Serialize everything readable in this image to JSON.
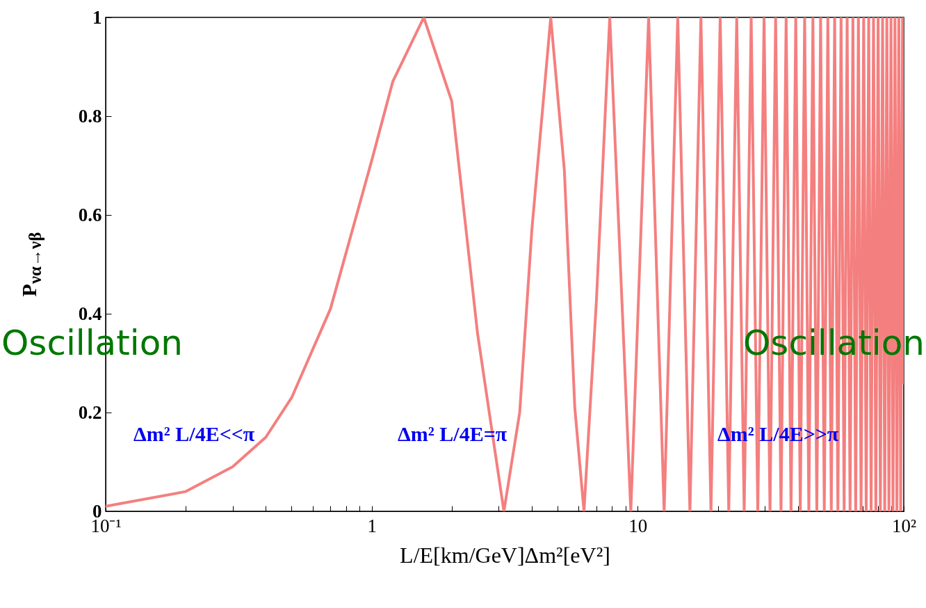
{
  "chart_data": {
    "type": "line",
    "xlabel": "L/E[km/GeV]Δm²[eV²]",
    "ylabel": "P$_{να→νβ}$",
    "log": "x",
    "grid": false,
    "marker": "none",
    "line_style": "solid",
    "xlim": [
      0.1,
      100
    ],
    "xticks": [
      {
        "value": 0.1,
        "label": "10⁻¹"
      },
      {
        "value": 0.2,
        "label": null
      },
      {
        "value": 0.3,
        "label": null
      },
      {
        "value": 0.4,
        "label": null
      },
      {
        "value": 0.5,
        "label": null
      },
      {
        "value": 0.6,
        "label": null
      },
      {
        "value": 0.7,
        "label": null
      },
      {
        "value": 0.8,
        "label": null
      },
      {
        "value": 0.9,
        "label": null
      },
      1,
      {
        "value": 2,
        "label": null
      },
      {
        "value": 3,
        "label": null
      },
      {
        "value": 4,
        "label": null
      },
      {
        "value": 5,
        "label": null
      },
      {
        "value": 6,
        "label": null
      },
      {
        "value": 7,
        "label": null
      },
      {
        "value": 8,
        "label": null
      },
      {
        "value": 9,
        "label": null
      },
      10,
      {
        "value": 20,
        "label": null
      },
      {
        "value": 30,
        "label": null
      },
      {
        "value": 40,
        "label": null
      },
      {
        "value": 50,
        "label": null
      },
      {
        "value": 60,
        "label": null
      },
      {
        "value": 70,
        "label": null
      },
      {
        "value": 80,
        "label": null
      },
      {
        "value": 90,
        "label": null
      },
      {
        "value": 100,
        "label": "10²"
      }
    ],
    "ylim": [
      0,
      1
    ],
    "yticks": [
      0,
      0.2,
      0.4,
      0.6,
      0.8,
      1
    ],
    "annotations": [
      "Oscillation",
      "Oscillation",
      "Δm² L/4E<<π",
      "Δm² L/4E=π",
      "Δm² L/4E>>π"
    ],
    "x": [
      0.1,
      0.2,
      0.3,
      0.4,
      0.5,
      0.7,
      1,
      1.2,
      1.57,
      2,
      2.5,
      3.14,
      3.6,
      4,
      4.71,
      5.3,
      5.8,
      6.28,
      7,
      7.85,
      8.7,
      9.42,
      10.99,
      12.57,
      14.14,
      15.71,
      17.28,
      18.85,
      20.42,
      21.99,
      23.56,
      25.13,
      26.7,
      28.27,
      29.85,
      31.42,
      32.99,
      34.56,
      36.13,
      37.7,
      39.27,
      40.84,
      42.41,
      43.98,
      45.55,
      47.12,
      48.69,
      50.27,
      51.84,
      53.41,
      54.98,
      56.55,
      58.12,
      59.69,
      61.26,
      62.83,
      64.4,
      65.97,
      67.54,
      69.12,
      70.69,
      72.26,
      73.83,
      75.4,
      76.97,
      78.54,
      80.11,
      81.68,
      83.25,
      84.82,
      86.39,
      87.96,
      89.54,
      91.11,
      92.68,
      94.25,
      95.82,
      97.39,
      98.96,
      100
    ],
    "series": [
      {
        "color": "#f47f7f",
        "values": [
          0.01,
          0.04,
          0.09,
          0.15,
          0.23,
          0.41,
          0.71,
          0.87,
          1,
          0.83,
          0.36,
          0,
          0.2,
          0.57,
          1,
          0.69,
          0.21,
          0,
          0.43,
          1,
          0.44,
          0,
          1,
          0,
          1,
          0,
          1,
          0,
          1,
          0,
          1,
          0,
          1,
          0,
          1,
          0,
          1,
          0,
          1,
          0,
          1,
          0,
          1,
          0,
          1,
          0,
          1,
          0,
          1,
          0,
          1,
          0,
          1,
          0,
          1,
          0,
          1,
          0,
          1,
          0,
          1,
          0,
          1,
          0,
          1,
          0,
          1,
          0,
          1,
          0,
          1,
          0,
          1,
          0,
          1,
          0,
          1,
          0,
          1,
          0.26
        ]
      }
    ]
  }
}
